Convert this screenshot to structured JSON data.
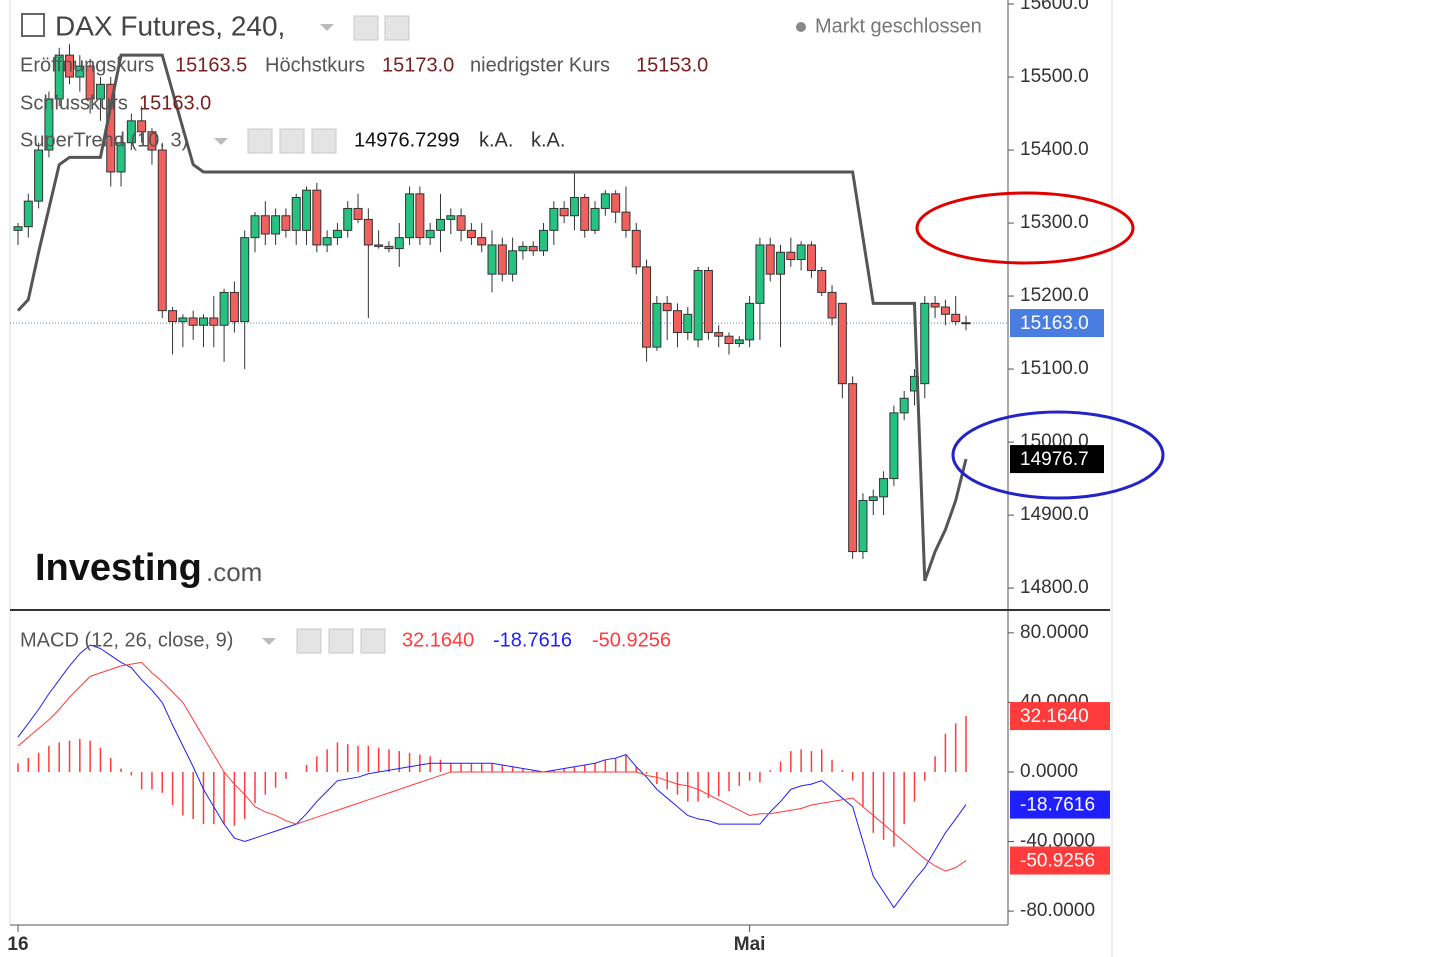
{
  "chart_data": [
    {
      "type": "candlestick",
      "title": "DAX Futures, 240,",
      "status": "Markt geschlossen",
      "watermark": {
        "brand": "Investing",
        "suffix": ".com"
      },
      "legend": [
        {
          "label": "Eröffnungskurs",
          "value": "15163.5"
        },
        {
          "label": "Höchstkurs",
          "value": "15173.0"
        },
        {
          "label": "niedrigster Kurs",
          "value": "15153.0"
        },
        {
          "label": "Schlusskurs",
          "value": "15163.0"
        }
      ],
      "categories": [
        "16",
        null,
        null,
        null,
        null,
        null,
        null,
        null,
        null,
        null,
        null,
        null,
        null,
        null,
        null,
        null,
        null,
        null,
        null,
        null,
        null,
        null,
        null,
        null,
        null,
        null,
        null,
        null,
        null,
        null,
        null,
        null,
        null,
        null,
        null,
        null,
        null,
        null,
        null,
        null,
        null,
        null,
        null,
        null,
        null,
        null,
        null,
        null,
        null,
        null,
        null,
        null,
        null,
        null,
        null,
        null,
        null,
        null,
        null,
        null,
        null,
        null,
        null,
        null,
        null,
        null,
        null,
        null,
        null,
        null,
        null,
        "Mai",
        null,
        null,
        null,
        null,
        null,
        null,
        null,
        null,
        null,
        null,
        null,
        null,
        null,
        null,
        null,
        null,
        null,
        null,
        null,
        null,
        null
      ],
      "ohlc": [
        [
          15290,
          15300,
          15270,
          15295
        ],
        [
          15295,
          15340,
          15280,
          15330
        ],
        [
          15330,
          15410,
          15320,
          15400
        ],
        [
          15400,
          15480,
          15390,
          15470
        ],
        [
          15470,
          15540,
          15460,
          15530
        ],
        [
          15530,
          15545,
          15490,
          15500
        ],
        [
          15500,
          15530,
          15480,
          15515
        ],
        [
          15515,
          15525,
          15450,
          15470
        ],
        [
          15470,
          15500,
          15440,
          15490
        ],
        [
          15490,
          15500,
          15350,
          15370
        ],
        [
          15370,
          15420,
          15350,
          15410
        ],
        [
          15410,
          15450,
          15400,
          15440
        ],
        [
          15440,
          15460,
          15410,
          15425
        ],
        [
          15425,
          15430,
          15380,
          15400
        ],
        [
          15400,
          15410,
          15170,
          15180
        ],
        [
          15180,
          15185,
          15120,
          15165
        ],
        [
          15165,
          15175,
          15130,
          15170
        ],
        [
          15170,
          15180,
          15140,
          15160
        ],
        [
          15160,
          15175,
          15130,
          15170
        ],
        [
          15170,
          15200,
          15130,
          15160
        ],
        [
          15160,
          15210,
          15110,
          15205
        ],
        [
          15205,
          15220,
          15150,
          15165
        ],
        [
          15165,
          15290,
          15100,
          15280
        ],
        [
          15280,
          15315,
          15260,
          15310
        ],
        [
          15310,
          15330,
          15270,
          15285
        ],
        [
          15285,
          15320,
          15270,
          15310
        ],
        [
          15310,
          15320,
          15280,
          15290
        ],
        [
          15290,
          15340,
          15270,
          15335
        ],
        [
          15290,
          15350,
          15270,
          15345
        ],
        [
          15345,
          15355,
          15260,
          15270
        ],
        [
          15270,
          15290,
          15260,
          15280
        ],
        [
          15280,
          15300,
          15270,
          15290
        ],
        [
          15290,
          15330,
          15280,
          15320
        ],
        [
          15320,
          15340,
          15300,
          15305
        ],
        [
          15305,
          15320,
          15170,
          15270
        ],
        [
          15270,
          15290,
          15265,
          15268
        ],
        [
          15268,
          15275,
          15260,
          15265
        ],
        [
          15265,
          15300,
          15240,
          15280
        ],
        [
          15280,
          15350,
          15270,
          15340
        ],
        [
          15340,
          15350,
          15270,
          15280
        ],
        [
          15280,
          15300,
          15270,
          15290
        ],
        [
          15290,
          15340,
          15260,
          15305
        ],
        [
          15305,
          15320,
          15285,
          15310
        ],
        [
          15310,
          15320,
          15275,
          15290
        ],
        [
          15290,
          15300,
          15270,
          15280
        ],
        [
          15280,
          15300,
          15260,
          15270
        ],
        [
          15230,
          15290,
          15205,
          15270
        ],
        [
          15270,
          15280,
          15220,
          15230
        ],
        [
          15230,
          15280,
          15220,
          15262
        ],
        [
          15262,
          15275,
          15250,
          15268
        ],
        [
          15268,
          15275,
          15255,
          15262
        ],
        [
          15262,
          15300,
          15255,
          15290
        ],
        [
          15290,
          15330,
          15270,
          15320
        ],
        [
          15320,
          15330,
          15300,
          15310
        ],
        [
          15310,
          15370,
          15290,
          15335
        ],
        [
          15335,
          15340,
          15280,
          15290
        ],
        [
          15290,
          15330,
          15285,
          15320
        ],
        [
          15320,
          15345,
          15310,
          15340
        ],
        [
          15340,
          15345,
          15300,
          15315
        ],
        [
          15315,
          15350,
          15280,
          15290
        ],
        [
          15290,
          15300,
          15230,
          15240
        ],
        [
          15240,
          15250,
          15110,
          15130
        ],
        [
          15130,
          15200,
          15125,
          15190
        ],
        [
          15190,
          15200,
          15140,
          15180
        ],
        [
          15180,
          15190,
          15130,
          15150
        ],
        [
          15150,
          15185,
          15140,
          15175
        ],
        [
          15140,
          15240,
          15130,
          15235
        ],
        [
          15235,
          15240,
          15140,
          15150
        ],
        [
          15150,
          15160,
          15130,
          15145
        ],
        [
          15145,
          15150,
          15120,
          15135
        ],
        [
          15135,
          15145,
          15130,
          15140
        ],
        [
          15140,
          15200,
          15130,
          15190
        ],
        [
          15190,
          15280,
          15140,
          15270
        ],
        [
          15270,
          15280,
          15220,
          15230
        ],
        [
          15230,
          15270,
          15130,
          15260
        ],
        [
          15260,
          15280,
          15240,
          15250
        ],
        [
          15250,
          15275,
          15235,
          15270
        ],
        [
          15270,
          15275,
          15225,
          15235
        ],
        [
          15235,
          15240,
          15200,
          15205
        ],
        [
          15205,
          15215,
          15160,
          15170
        ],
        [
          15190,
          15190,
          15060,
          15080
        ],
        [
          15080,
          15090,
          14840,
          14850
        ],
        [
          14850,
          14930,
          14840,
          14920
        ],
        [
          14920,
          14935,
          14900,
          14925
        ],
        [
          14925,
          14960,
          14900,
          14950
        ],
        [
          14950,
          15050,
          14940,
          15040
        ],
        [
          15040,
          15070,
          15030,
          15060
        ],
        [
          15070,
          15100,
          15050,
          15090
        ],
        [
          15080,
          15200,
          15060,
          15190
        ],
        [
          15190,
          15200,
          15170,
          15185
        ],
        [
          15185,
          15195,
          15160,
          15175
        ],
        [
          15175,
          15200,
          15160,
          15165
        ],
        [
          15163.5,
          15173,
          15153,
          15163
        ]
      ],
      "up_color": "#26c281",
      "down_color": "#f0605d",
      "last_price_color": "#4a7de0",
      "series": [
        {
          "name": "SuperTrend (10, 3)",
          "color": "#555555",
          "values": [
            15180,
            15195,
            15260,
            15320,
            15380,
            15390,
            15390,
            15390,
            15390,
            15460,
            15530,
            15530,
            15530,
            15530,
            15530,
            15480,
            15430,
            15380,
            15370,
            15370,
            15370,
            15370,
            15370,
            15370,
            15370,
            15370,
            15370,
            15370,
            15370,
            15370,
            15370,
            15370,
            15370,
            15370,
            15370,
            15370,
            15370,
            15370,
            15370,
            15370,
            15370,
            15370,
            15370,
            15370,
            15370,
            15370,
            15370,
            15370,
            15370,
            15370,
            15370,
            15370,
            15370,
            15370,
            15370,
            15370,
            15370,
            15370,
            15370,
            15370,
            15370,
            15370,
            15370,
            15370,
            15370,
            15370,
            15370,
            15370,
            15370,
            15370,
            15370,
            15370,
            15370,
            15370,
            15370,
            15370,
            15370,
            15370,
            15370,
            15370,
            15370,
            15370,
            15280,
            15190,
            15190,
            15190,
            15190,
            15190,
            14810,
            14850,
            14880,
            14920,
            14976.7299
          ],
          "legend_values": [
            "14976.7299",
            "k.A.",
            "k.A."
          ],
          "tag_label": "14976.7"
        }
      ],
      "ylim": [
        14770,
        15605.5
      ],
      "yticks": [
        {
          "value": 15600,
          "label": "15600.0"
        },
        {
          "value": 15500,
          "label": "15500.0"
        },
        {
          "value": 15400,
          "label": "15400.0"
        },
        {
          "value": 15300,
          "label": "15300.0"
        },
        {
          "value": 15200,
          "label": "15200.0"
        },
        {
          "value": 15100,
          "label": "15100.0"
        },
        {
          "value": 15000,
          "label": "15000.0"
        },
        {
          "value": 14900,
          "label": "14900.0"
        },
        {
          "value": 14800,
          "label": "14800.0"
        }
      ]
    },
    {
      "type": "macd",
      "title": "MACD (12, 26, close, 9)",
      "series": [
        {
          "kind": "histogram",
          "color": "#ff3b3b",
          "value_label": "32.1640",
          "values": [
            5,
            8,
            11,
            15,
            17,
            18,
            19,
            18,
            14,
            8,
            2,
            -2,
            -10,
            -10,
            -12,
            -19,
            -25,
            -27,
            -30,
            -30,
            -30,
            -31,
            -27,
            -18,
            -13,
            -9,
            -4,
            0,
            4,
            9,
            13,
            17,
            16,
            15,
            15,
            14,
            13,
            12,
            11,
            10,
            9,
            7,
            5,
            5,
            5,
            5,
            5,
            4,
            3,
            2,
            1,
            0,
            1,
            2,
            3,
            4,
            5,
            7,
            8,
            10,
            3,
            -1,
            -7,
            -10,
            -13,
            -17,
            -17,
            -15,
            -14,
            -11,
            -8,
            -5,
            -6,
            1,
            6,
            12,
            13,
            12,
            13,
            7,
            1,
            -5,
            -20,
            -35,
            -39,
            -43,
            -30,
            -17,
            -5,
            9,
            22,
            28,
            32.164
          ]
        },
        {
          "kind": "line",
          "color": "#1f1fff",
          "value_label": "-18.7616",
          "values": [
            20,
            28,
            36,
            45,
            53,
            61,
            68,
            73,
            71,
            67,
            63,
            60,
            53,
            47,
            40,
            27,
            15,
            3,
            -10,
            -20,
            -30,
            -38,
            -40,
            -38,
            -36,
            -34,
            -32,
            -30,
            -24,
            -17,
            -11,
            -5,
            -4,
            -3,
            -1,
            0,
            1,
            2,
            3,
            4,
            5,
            5,
            5,
            5,
            5,
            5,
            5,
            4,
            3,
            2,
            1,
            0,
            1,
            2,
            3,
            4,
            5,
            7,
            8,
            10,
            3,
            -3,
            -10,
            -15,
            -20,
            -25,
            -27,
            -28,
            -30,
            -30,
            -30,
            -30,
            -30,
            -23,
            -17,
            -10,
            -8,
            -7,
            -5,
            -10,
            -15,
            -20,
            -40,
            -60,
            -69,
            -78,
            -70,
            -62,
            -55,
            -45,
            -35,
            -27,
            -18.7616
          ]
        },
        {
          "kind": "line",
          "color": "#ff3b3b",
          "value_label": "-50.9256",
          "values": [
            15,
            20,
            25,
            30,
            36,
            43,
            49,
            55,
            57,
            59,
            61,
            62,
            63,
            57,
            52,
            46,
            40,
            30,
            20,
            10,
            0,
            -7,
            -13,
            -20,
            -23,
            -25,
            -28,
            -30,
            -28,
            -26,
            -24,
            -22,
            -20,
            -18,
            -16,
            -14,
            -12,
            -10,
            -8,
            -6,
            -4,
            -2,
            0,
            0,
            0,
            0,
            0,
            0,
            0,
            0,
            0,
            0,
            0,
            0,
            0,
            0,
            0,
            0,
            0,
            0,
            0,
            -2,
            -3,
            -5,
            -7,
            -8,
            -10,
            -13,
            -16,
            -19,
            -22,
            -25,
            -24,
            -24,
            -23,
            -22,
            -21,
            -19,
            -18,
            -17,
            -16,
            -15,
            -20,
            -25,
            -30,
            -35,
            -40,
            -45,
            -50,
            -54,
            -57,
            -55,
            -50.9256
          ]
        }
      ],
      "ylim": [
        -88,
        92
      ],
      "yticks": [
        {
          "value": 80,
          "label": "80.0000"
        },
        {
          "value": 40,
          "label": "40.0000"
        },
        {
          "value": 0,
          "label": "0.0000"
        },
        {
          "value": -40,
          "label": "-40.0000"
        },
        {
          "value": -80,
          "label": "-80.0000"
        }
      ]
    }
  ]
}
